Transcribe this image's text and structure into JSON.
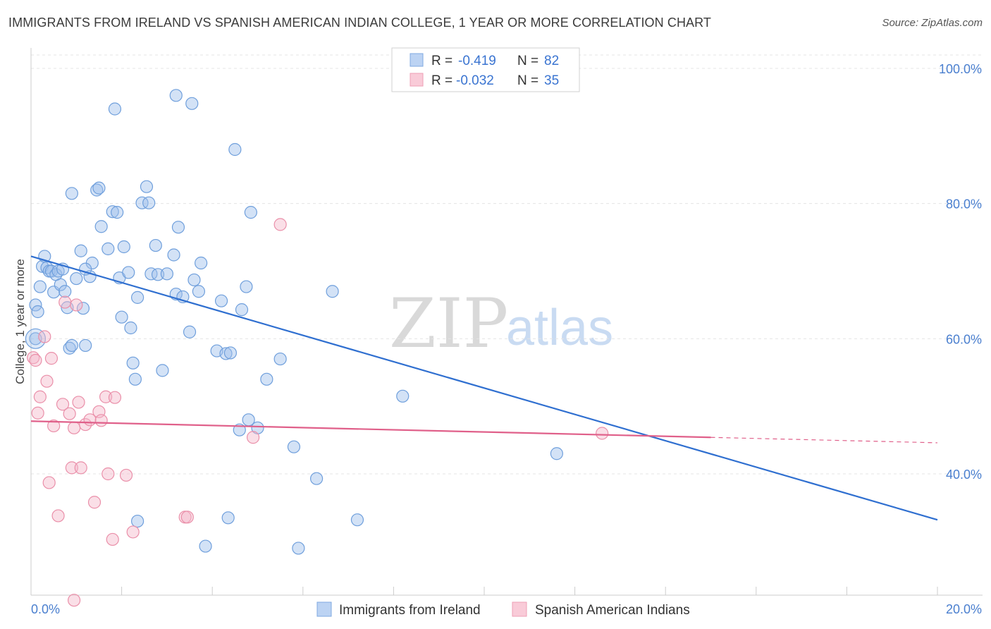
{
  "header": {
    "title": "IMMIGRANTS FROM IRELAND VS SPANISH AMERICAN INDIAN COLLEGE, 1 YEAR OR MORE CORRELATION CHART",
    "source": "Source: ZipAtlas.com"
  },
  "watermark": {
    "zip": "ZIP",
    "atlas": "atlas"
  },
  "legend_top": {
    "rows": [
      {
        "r_label": "R =",
        "r_value": "-0.419",
        "n_label": "N =",
        "n_value": "82"
      },
      {
        "r_label": "R =",
        "r_value": "-0.032",
        "n_label": "N =",
        "n_value": "35"
      }
    ]
  },
  "chart_data": {
    "type": "scatter",
    "title": "IMMIGRANTS FROM IRELAND VS SPANISH AMERICAN INDIAN COLLEGE, 1 YEAR OR MORE CORRELATION CHART",
    "xlabel": "",
    "ylabel": "College, 1 year or more",
    "xlim": [
      0,
      20
    ],
    "ylim": [
      20,
      102
    ],
    "x_tick_labels": [
      "0.0%",
      "20.0%"
    ],
    "y_ticks": [
      {
        "value": 100,
        "label": "100.0%"
      },
      {
        "value": 80,
        "label": "80.0%"
      },
      {
        "value": 60,
        "label": "60.0%"
      },
      {
        "value": 40,
        "label": "40.0%"
      }
    ],
    "grid": "horizontal dashed",
    "legend_position": "bottom",
    "series": [
      {
        "name": "Immigrants from Ireland",
        "color": "#9dbfea",
        "stroke": "#6f9fdc",
        "trend_color": "#2f6fd0",
        "trend": {
          "x0": 0,
          "y0": 72.2,
          "x1": 20,
          "y1": 33.2
        },
        "points": [
          [
            0.1,
            65.0
          ],
          [
            0.15,
            64.0
          ],
          [
            0.1,
            60.0
          ],
          [
            0.2,
            67.7
          ],
          [
            0.25,
            70.7
          ],
          [
            0.3,
            72.2
          ],
          [
            0.35,
            70.5
          ],
          [
            0.4,
            70.0
          ],
          [
            0.45,
            70.0
          ],
          [
            0.5,
            66.9
          ],
          [
            0.55,
            69.5
          ],
          [
            0.6,
            70.0
          ],
          [
            0.65,
            68.0
          ],
          [
            0.7,
            70.3
          ],
          [
            0.75,
            67.0
          ],
          [
            0.8,
            64.6
          ],
          [
            0.85,
            58.6
          ],
          [
            0.9,
            59.0
          ],
          [
            1.0,
            68.9
          ],
          [
            1.1,
            73.0
          ],
          [
            1.15,
            64.5
          ],
          [
            1.2,
            59.0
          ],
          [
            1.3,
            69.2
          ],
          [
            1.35,
            71.2
          ],
          [
            1.45,
            82.0
          ],
          [
            1.5,
            82.3
          ],
          [
            1.55,
            76.6
          ],
          [
            1.7,
            73.3
          ],
          [
            1.8,
            78.8
          ],
          [
            1.9,
            78.7
          ],
          [
            1.95,
            69.0
          ],
          [
            2.0,
            63.2
          ],
          [
            2.05,
            73.6
          ],
          [
            2.15,
            69.8
          ],
          [
            2.25,
            56.4
          ],
          [
            2.3,
            54.0
          ],
          [
            2.35,
            66.1
          ],
          [
            2.45,
            80.1
          ],
          [
            2.55,
            82.5
          ],
          [
            2.6,
            80.1
          ],
          [
            2.65,
            69.6
          ],
          [
            2.75,
            73.8
          ],
          [
            2.8,
            69.5
          ],
          [
            2.9,
            55.3
          ],
          [
            3.0,
            69.6
          ],
          [
            3.15,
            72.4
          ],
          [
            3.2,
            66.6
          ],
          [
            3.25,
            76.5
          ],
          [
            3.35,
            66.2
          ],
          [
            3.5,
            61.0
          ],
          [
            3.6,
            68.7
          ],
          [
            3.7,
            67.0
          ],
          [
            3.75,
            71.2
          ],
          [
            3.55,
            94.8
          ],
          [
            4.1,
            58.2
          ],
          [
            4.2,
            65.6
          ],
          [
            4.3,
            57.8
          ],
          [
            4.5,
            88.0
          ],
          [
            4.6,
            46.5
          ],
          [
            4.65,
            64.3
          ],
          [
            4.75,
            67.7
          ],
          [
            4.85,
            78.7
          ],
          [
            4.8,
            48.0
          ],
          [
            5.2,
            54.0
          ],
          [
            5.5,
            57.0
          ],
          [
            5.8,
            44.0
          ],
          [
            6.3,
            39.3
          ],
          [
            6.65,
            67.0
          ],
          [
            1.85,
            94.0
          ],
          [
            3.2,
            96.0
          ],
          [
            4.35,
            33.5
          ],
          [
            5.9,
            29.0
          ],
          [
            7.2,
            33.2
          ],
          [
            8.2,
            51.5
          ],
          [
            11.6,
            43.0
          ],
          [
            2.35,
            33.0
          ],
          [
            3.85,
            29.3
          ],
          [
            0.9,
            81.5
          ],
          [
            1.2,
            70.3
          ],
          [
            2.2,
            61.6
          ],
          [
            4.4,
            57.9
          ],
          [
            5.0,
            46.8
          ]
        ]
      },
      {
        "name": "Spanish American Indians",
        "color": "#f5b8ca",
        "stroke": "#ea8fa9",
        "trend_color": "#e0608a",
        "trend": {
          "x0": 0,
          "y0": 47.8,
          "x1": 15,
          "y1": 45.4,
          "dash_to_x": 20,
          "dash_to_y": 44.6
        },
        "points": [
          [
            0.05,
            57.2
          ],
          [
            0.1,
            56.8
          ],
          [
            0.15,
            49.0
          ],
          [
            0.2,
            51.4
          ],
          [
            0.3,
            60.3
          ],
          [
            0.35,
            53.7
          ],
          [
            0.4,
            38.7
          ],
          [
            0.45,
            57.1
          ],
          [
            0.5,
            47.1
          ],
          [
            0.6,
            33.8
          ],
          [
            0.7,
            50.3
          ],
          [
            0.75,
            65.4
          ],
          [
            0.85,
            48.9
          ],
          [
            0.9,
            40.9
          ],
          [
            0.95,
            46.8
          ],
          [
            1.0,
            65.0
          ],
          [
            1.05,
            50.6
          ],
          [
            1.1,
            40.9
          ],
          [
            1.2,
            47.3
          ],
          [
            1.3,
            48.0
          ],
          [
            1.4,
            35.8
          ],
          [
            1.5,
            49.2
          ],
          [
            1.55,
            47.9
          ],
          [
            1.65,
            51.4
          ],
          [
            1.7,
            40.0
          ],
          [
            1.8,
            30.3
          ],
          [
            1.85,
            51.3
          ],
          [
            2.1,
            39.8
          ],
          [
            2.25,
            31.4
          ],
          [
            3.4,
            33.6
          ],
          [
            3.45,
            33.6
          ],
          [
            4.9,
            45.4
          ],
          [
            5.5,
            76.9
          ],
          [
            0.95,
            21.3
          ],
          [
            12.6,
            46.0
          ]
        ]
      }
    ]
  }
}
